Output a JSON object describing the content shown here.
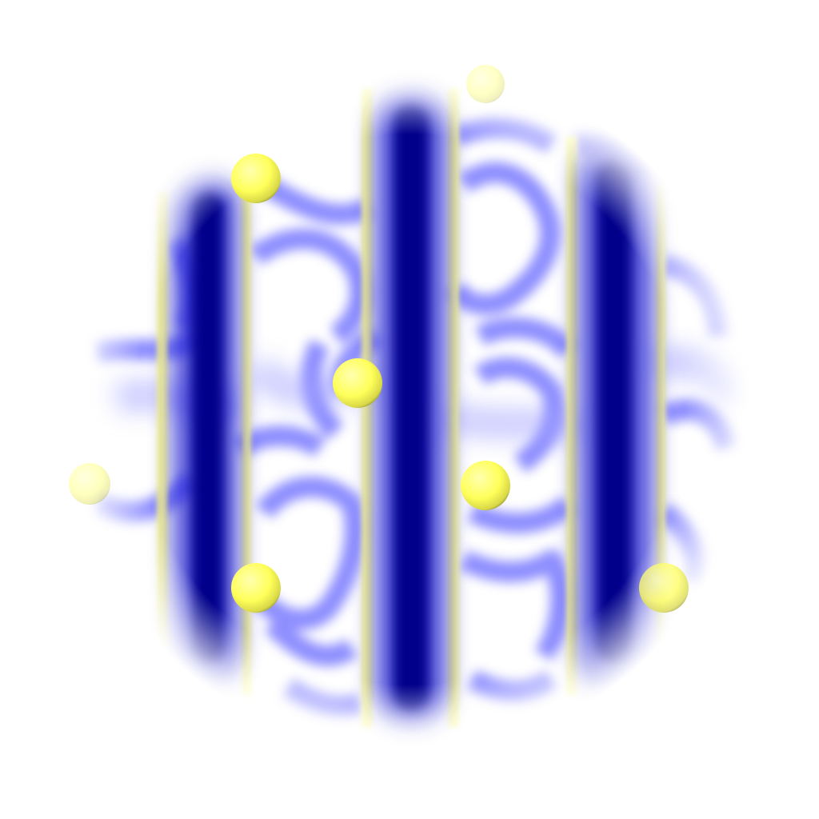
{
  "image": {
    "kind": "blurred volumetric rendering",
    "background_color": "#ffffff",
    "mesh_color": "#7a7aff",
    "band_color": "#00008b",
    "band_edge_color": "#ffff90",
    "sphere_color": "#ffff55",
    "sphere_rim_color": "#7a7a3a",
    "band_count": 3,
    "sphere_count": 7
  }
}
